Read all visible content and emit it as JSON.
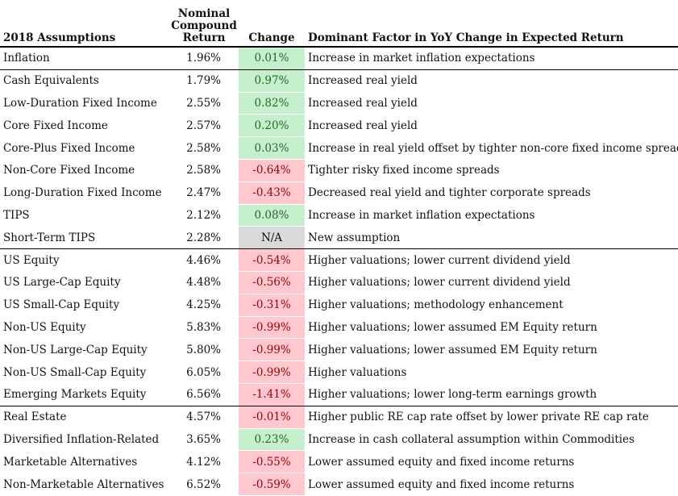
{
  "headers": {
    "assumptions": "2018 Assumptions",
    "return": "Nominal\nCompound\nReturn",
    "change": "Change",
    "factor": "Dominant Factor in YoY Change in Expected Return"
  },
  "colors": {
    "positive_bg": "#c6efce",
    "negative_bg": "#ffc7ce",
    "na_bg": "#d9d9d9"
  },
  "rows": [
    {
      "name": "Inflation",
      "ret": "1.96%",
      "chg": "0.01%",
      "dir": "pos",
      "factor": "Increase in market inflation expectations"
    },
    {
      "name": "Cash Equivalents",
      "ret": "1.79%",
      "chg": "0.97%",
      "dir": "pos",
      "factor": "Increased real yield"
    },
    {
      "name": "Low-Duration Fixed Income",
      "ret": "2.55%",
      "chg": "0.82%",
      "dir": "pos",
      "factor": "Increased real yield"
    },
    {
      "name": "Core Fixed Income",
      "ret": "2.57%",
      "chg": "0.20%",
      "dir": "pos",
      "factor": "Increased real yield"
    },
    {
      "name": "Core-Plus Fixed Income",
      "ret": "2.58%",
      "chg": "0.03%",
      "dir": "pos",
      "factor": "Increase in real yield offset by tighter non-core fixed income spreads"
    },
    {
      "name": "Non-Core Fixed Income",
      "ret": "2.58%",
      "chg": "-0.64%",
      "dir": "neg",
      "factor": "Tighter risky fixed income spreads"
    },
    {
      "name": "Long-Duration Fixed Income",
      "ret": "2.47%",
      "chg": "-0.43%",
      "dir": "neg",
      "factor": "Decreased real yield and tighter corporate spreads"
    },
    {
      "name": "TIPS",
      "ret": "2.12%",
      "chg": "0.08%",
      "dir": "pos",
      "factor": "Increase in market inflation expectations"
    },
    {
      "name": "Short-Term TIPS",
      "ret": "2.28%",
      "chg": "N/A",
      "dir": "na",
      "factor": "New assumption"
    },
    {
      "name": "US Equity",
      "ret": "4.46%",
      "chg": "-0.54%",
      "dir": "neg",
      "factor": "Higher valuations; lower current dividend yield"
    },
    {
      "name": "US Large-Cap Equity",
      "ret": "4.48%",
      "chg": "-0.56%",
      "dir": "neg",
      "factor": "Higher valuations; lower current dividend yield"
    },
    {
      "name": "US Small-Cap Equity",
      "ret": "4.25%",
      "chg": "-0.31%",
      "dir": "neg",
      "factor": "Higher valuations; methodology enhancement"
    },
    {
      "name": "Non-US Equity",
      "ret": "5.83%",
      "chg": "-0.99%",
      "dir": "neg",
      "factor": "Higher valuations; lower assumed EM Equity return"
    },
    {
      "name": "Non-US Large-Cap Equity",
      "ret": "5.80%",
      "chg": "-0.99%",
      "dir": "neg",
      "factor": "Higher valuations; lower assumed EM Equity return"
    },
    {
      "name": "Non-US Small-Cap Equity",
      "ret": "6.05%",
      "chg": "-0.99%",
      "dir": "neg",
      "factor": "Higher valuations"
    },
    {
      "name": "Emerging Markets Equity",
      "ret": "6.56%",
      "chg": "-1.41%",
      "dir": "neg",
      "factor": "Higher valuations; lower long-term earnings growth"
    },
    {
      "name": "Real Estate",
      "ret": "4.57%",
      "chg": "-0.01%",
      "dir": "neg",
      "factor": "Higher public RE cap rate offset by lower private RE cap rate"
    },
    {
      "name": "Diversified Inflation-Related",
      "ret": "3.65%",
      "chg": "0.23%",
      "dir": "pos",
      "factor": "Increase in cash collateral assumption within Commodities"
    },
    {
      "name": "Marketable Alternatives",
      "ret": "4.12%",
      "chg": "-0.55%",
      "dir": "neg",
      "factor": "Lower assumed equity and fixed income returns"
    },
    {
      "name": "Non-Marketable Alternatives",
      "ret": "6.52%",
      "chg": "-0.59%",
      "dir": "neg",
      "factor": "Lower assumed equity and fixed income returns"
    }
  ]
}
